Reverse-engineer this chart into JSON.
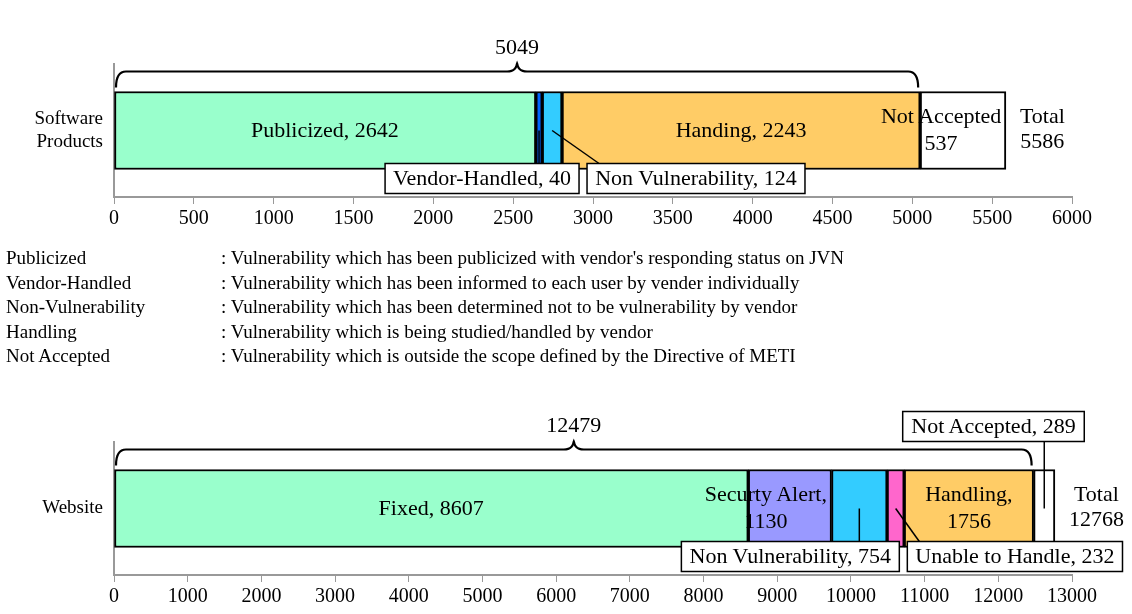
{
  "chart_data": [
    {
      "type": "bar",
      "orientation": "horizontal",
      "stacked": true,
      "legend": false,
      "categories": [
        "Software Products"
      ],
      "series": [
        {
          "color": "#99ffcc",
          "values": [
            2642
          ],
          "value_labels": [
            "Publicized, 2642"
          ]
        },
        {
          "color": "#0066ff",
          "values": [
            40
          ],
          "value_labels": [
            "Vendor-Handled, 40"
          ]
        },
        {
          "color": "#33ccff",
          "values": [
            124
          ],
          "value_labels": [
            "Non Vulnerability, 124"
          ]
        },
        {
          "color": "#ffcc66",
          "values": [
            2243
          ],
          "value_labels": [
            "Handing, 2243"
          ]
        },
        {
          "color": "#ffffff",
          "values": [
            537
          ],
          "value_labels": [
            "Not Accepted 537"
          ]
        }
      ],
      "xlim": [
        0,
        6000
      ],
      "xticks": [
        0,
        500,
        1000,
        1500,
        2000,
        2500,
        3000,
        3500,
        4000,
        4500,
        5000,
        5500,
        6000
      ],
      "annotations": [
        "5049",
        "Total 5586"
      ]
    },
    {
      "type": "other",
      "annotations": [
        "Publicized",
        ": Vulnerability which has been publicized with vendor's responding status on JVN",
        "Vendor-Handled",
        ": Vulnerability which has been informed to each user by vender individually",
        "Non-Vulnerability",
        ": Vulnerability which has been determined not to be vulnerability by vendor",
        "Handling",
        ": Vulnerability which is being studied/handled by vendor",
        "Not Accepted",
        ": Vulnerability which is outside the scope defined by the Directive of METI"
      ]
    },
    {
      "type": "bar",
      "orientation": "horizontal",
      "stacked": true,
      "legend": false,
      "categories": [
        "Website"
      ],
      "series": [
        {
          "color": "#99ffcc",
          "values": [
            8607
          ],
          "value_labels": [
            "Fixed, 8607"
          ]
        },
        {
          "color": "#9999ff",
          "values": [
            1130
          ],
          "value_labels": [
            "Securty Alert, 1130"
          ]
        },
        {
          "color": "#33ccff",
          "values": [
            754
          ],
          "value_labels": [
            "Non Vulnerability, 754"
          ]
        },
        {
          "color": "#ff66cc",
          "values": [
            232
          ],
          "value_labels": [
            "Unable to Handle, 232"
          ]
        },
        {
          "color": "#ffcc66",
          "values": [
            1756
          ],
          "value_labels": [
            "Handling, 1756"
          ]
        },
        {
          "color": "#ffffff",
          "values": [
            289
          ],
          "value_labels": [
            "Not Accepted, 289"
          ]
        }
      ],
      "xlim": [
        0,
        13000
      ],
      "xticks": [
        0,
        1000,
        2000,
        3000,
        4000,
        5000,
        6000,
        7000,
        8000,
        9000,
        10000,
        11000,
        12000,
        13000
      ],
      "annotations": [
        "12479",
        "Total 12768"
      ]
    }
  ]
}
